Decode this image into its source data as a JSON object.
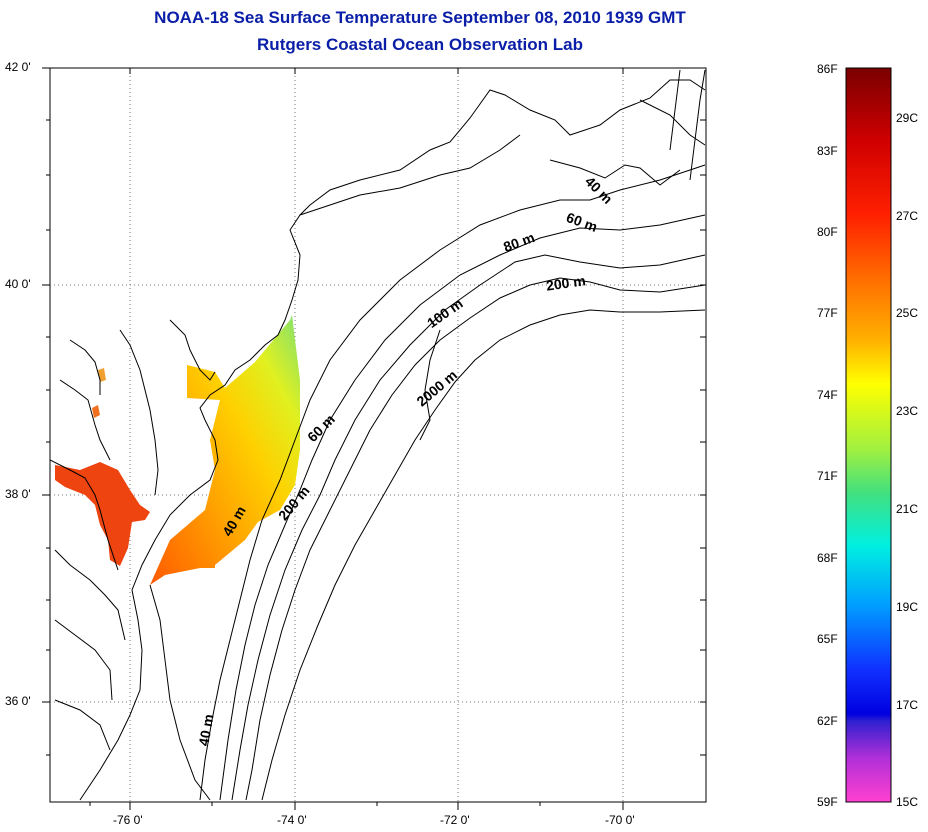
{
  "header": {
    "title": "NOAA-18 Sea Surface Temperature September 08, 2010 1939 GMT",
    "subtitle": "Rutgers Coastal Ocean Observation Lab"
  },
  "map": {
    "lat_ticks": [
      "42 0'",
      "40 0'",
      "38 0'",
      "36 0'"
    ],
    "lon_ticks": [
      "-76 0'",
      "-74 0'",
      "-72 0'",
      "-70 0'"
    ],
    "contour_labels": [
      "40 m",
      "60 m",
      "80 m",
      "200 m",
      "100 m",
      "2000 m",
      "60 m",
      "200 m",
      "40 m",
      "40 m"
    ],
    "lat_range": [
      35,
      42
    ],
    "lon_range": [
      -77,
      -69
    ],
    "grid": true
  },
  "colorbar": {
    "fahrenheit_labels": [
      "86F",
      "83F",
      "80F",
      "77F",
      "74F",
      "71F",
      "68F",
      "65F",
      "62F",
      "59F"
    ],
    "celsius_labels": [
      "29C",
      "27C",
      "25C",
      "23C",
      "21C",
      "19C",
      "17C",
      "15C"
    ],
    "colors": {
      "top": "#7a0000",
      "red": "#ff1a00",
      "orange": "#ff8c00",
      "yellow": "#ffff00",
      "green": "#60e060",
      "cyan": "#00ffff",
      "blue": "#0000ff",
      "purple": "#8a2be2",
      "magenta": "#ff33cc"
    }
  }
}
